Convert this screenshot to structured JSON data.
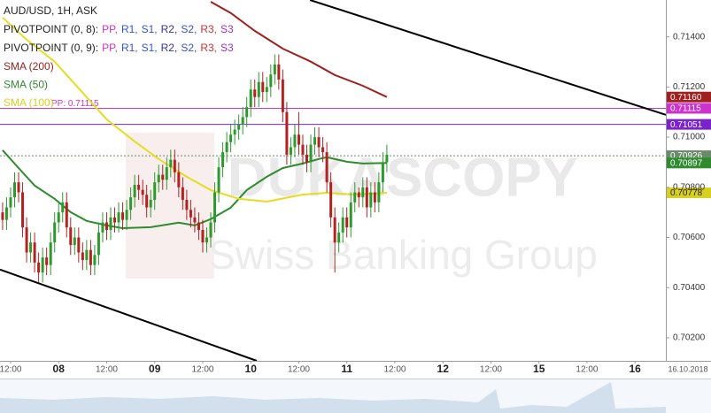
{
  "chart_data": {
    "type": "candlestick",
    "title": "AUD/USD, 1H, ASK",
    "pivot_legends": [
      {
        "label": "PIVOTPOINT (0, 8):",
        "items": [
          {
            "name": "PP,",
            "color": "#cc33cc"
          },
          {
            "name": "R1,",
            "color": "#3355cc"
          },
          {
            "name": "S1,",
            "color": "#3355cc"
          },
          {
            "name": "R2,",
            "color": "#333399"
          },
          {
            "name": "S2,",
            "color": "#3355cc"
          },
          {
            "name": "R3,",
            "color": "#cc3333"
          },
          {
            "name": "S3",
            "color": "#9933cc"
          }
        ]
      },
      {
        "label": "PIVOTPOINT (0, 9):",
        "items": [
          {
            "name": "PP,",
            "color": "#cc33cc"
          },
          {
            "name": "R1,",
            "color": "#3355cc"
          },
          {
            "name": "S1,",
            "color": "#3355cc"
          },
          {
            "name": "R2,",
            "color": "#333399"
          },
          {
            "name": "S2,",
            "color": "#3355cc"
          },
          {
            "name": "R3,",
            "color": "#cc3333"
          },
          {
            "name": "S3",
            "color": "#9933cc"
          }
        ]
      }
    ],
    "watermark": {
      "title": "DUKASCOPY",
      "subtitle": "Swiss Banking Group"
    },
    "xlim": [
      -2.65,
      163.7
    ],
    "ylim": [
      0.70108,
      0.71547
    ],
    "xticks": [
      {
        "value": 0,
        "label": "12:00"
      },
      {
        "value": 12,
        "label": "08"
      },
      {
        "value": 24,
        "label": "12:00"
      },
      {
        "value": 36,
        "label": "09"
      },
      {
        "value": 48,
        "label": "12:00"
      },
      {
        "value": 60,
        "label": "10"
      },
      {
        "value": 72,
        "label": "12:00"
      },
      {
        "value": 84,
        "label": "11"
      },
      {
        "value": 96,
        "label": "12:00"
      },
      {
        "value": 108,
        "label": "12"
      },
      {
        "value": 120,
        "label": "12:00"
      },
      {
        "value": 132,
        "label": "15"
      },
      {
        "value": 144,
        "label": "12:00"
      },
      {
        "value": 156,
        "label": "16"
      }
    ],
    "date_label": "16.10.2018",
    "yticks": [
      {
        "value": 0.702,
        "label": "0.70200"
      },
      {
        "value": 0.704,
        "label": "0.70400"
      },
      {
        "value": 0.706,
        "label": "0.70600"
      },
      {
        "value": 0.708,
        "label": "0.70800"
      },
      {
        "value": 0.71,
        "label": "0.71000"
      },
      {
        "value": 0.712,
        "label": "0.71200"
      },
      {
        "value": 0.714,
        "label": "0.71400"
      }
    ],
    "grid": false,
    "up_color": "#2e9a2e",
    "down_color": "#b22222",
    "x": [
      -2,
      -1,
      0,
      1,
      2,
      3,
      4,
      5,
      6,
      7,
      8,
      9,
      10,
      11,
      12,
      13,
      14,
      15,
      16,
      17,
      18,
      19,
      20,
      21,
      22,
      23,
      24,
      25,
      26,
      27,
      28,
      29,
      30,
      31,
      32,
      33,
      34,
      35,
      36,
      37,
      38,
      39,
      40,
      41,
      42,
      43,
      44,
      45,
      46,
      47,
      48,
      49,
      50,
      51,
      52,
      53,
      54,
      55,
      56,
      57,
      58,
      59,
      60,
      61,
      62,
      63,
      64,
      65,
      66,
      67,
      68,
      69,
      70,
      71,
      72,
      73,
      74,
      75,
      76,
      77,
      78,
      79,
      80,
      81,
      82,
      83,
      84,
      85,
      86,
      87,
      88,
      89,
      90,
      91,
      92,
      93,
      94
    ],
    "open": [
      0.707,
      0.7067,
      0.7072,
      0.7076,
      0.7082,
      0.7078,
      0.7064,
      0.7054,
      0.7058,
      0.705,
      0.7046,
      0.7052,
      0.7049,
      0.7058,
      0.7066,
      0.707,
      0.7074,
      0.7064,
      0.7057,
      0.706,
      0.7054,
      0.7051,
      0.7055,
      0.7049,
      0.7053,
      0.7062,
      0.7066,
      0.7063,
      0.7068,
      0.7066,
      0.707,
      0.7067,
      0.7071,
      0.7076,
      0.7081,
      0.7079,
      0.7077,
      0.7072,
      0.7075,
      0.7082,
      0.7085,
      0.7083,
      0.7088,
      0.7091,
      0.7086,
      0.708,
      0.7075,
      0.7071,
      0.7068,
      0.7066,
      0.7063,
      0.7058,
      0.706,
      0.7066,
      0.7078,
      0.7088,
      0.7094,
      0.7098,
      0.7101,
      0.7103,
      0.7105,
      0.7108,
      0.7112,
      0.7119,
      0.7116,
      0.7122,
      0.7118,
      0.712,
      0.7125,
      0.7129,
      0.7123,
      0.711,
      0.7093,
      0.7096,
      0.7101,
      0.7097,
      0.7093,
      0.709,
      0.7097,
      0.71,
      0.7096,
      0.7094,
      0.7082,
      0.7068,
      0.7058,
      0.7062,
      0.7068,
      0.7064,
      0.7074,
      0.7078,
      0.7076,
      0.708,
      0.7072,
      0.7078,
      0.7074,
      0.7082,
      0.709
    ],
    "high": [
      0.7074,
      0.7076,
      0.708,
      0.7086,
      0.7086,
      0.7082,
      0.7068,
      0.7062,
      0.7062,
      0.7054,
      0.7056,
      0.7056,
      0.7062,
      0.707,
      0.7074,
      0.7078,
      0.7078,
      0.7068,
      0.7064,
      0.7064,
      0.7058,
      0.7059,
      0.7059,
      0.7057,
      0.7066,
      0.707,
      0.707,
      0.7072,
      0.7072,
      0.7074,
      0.7074,
      0.7075,
      0.708,
      0.7085,
      0.7085,
      0.7083,
      0.7081,
      0.7079,
      0.7086,
      0.7089,
      0.7089,
      0.7092,
      0.7095,
      0.7095,
      0.709,
      0.7084,
      0.7079,
      0.7075,
      0.7072,
      0.707,
      0.7067,
      0.7064,
      0.707,
      0.7082,
      0.7092,
      0.7098,
      0.7102,
      0.7105,
      0.7107,
      0.7109,
      0.7112,
      0.7116,
      0.7123,
      0.7123,
      0.7126,
      0.7126,
      0.7124,
      0.7129,
      0.7133,
      0.7133,
      0.7127,
      0.7114,
      0.71,
      0.7105,
      0.711,
      0.7101,
      0.7097,
      0.7101,
      0.7104,
      0.7104,
      0.71,
      0.7098,
      0.7086,
      0.7072,
      0.7066,
      0.7072,
      0.7072,
      0.7078,
      0.7082,
      0.708,
      0.7084,
      0.7084,
      0.7082,
      0.7082,
      0.7086,
      0.7094,
      0.7097
    ],
    "low": [
      0.7063,
      0.7063,
      0.7068,
      0.7072,
      0.7074,
      0.706,
      0.705,
      0.705,
      0.7046,
      0.7042,
      0.7042,
      0.7045,
      0.7045,
      0.7054,
      0.7062,
      0.7066,
      0.706,
      0.7053,
      0.7053,
      0.705,
      0.7047,
      0.7047,
      0.7045,
      0.7045,
      0.7049,
      0.7058,
      0.7059,
      0.7059,
      0.7062,
      0.7062,
      0.7063,
      0.7063,
      0.7067,
      0.7072,
      0.7075,
      0.7073,
      0.7068,
      0.7068,
      0.7071,
      0.7078,
      0.7079,
      0.7079,
      0.7084,
      0.7082,
      0.7076,
      0.7071,
      0.7067,
      0.7064,
      0.7062,
      0.7059,
      0.7054,
      0.7054,
      0.7056,
      0.7062,
      0.7074,
      0.7084,
      0.709,
      0.7094,
      0.7097,
      0.7099,
      0.7101,
      0.7104,
      0.7108,
      0.7112,
      0.7112,
      0.7114,
      0.7114,
      0.7116,
      0.7121,
      0.7119,
      0.7106,
      0.7089,
      0.7089,
      0.7092,
      0.7093,
      0.7089,
      0.7086,
      0.7086,
      0.7093,
      0.7092,
      0.709,
      0.7078,
      0.7064,
      0.7046,
      0.7054,
      0.7058,
      0.706,
      0.706,
      0.707,
      0.7072,
      0.7072,
      0.7068,
      0.7068,
      0.707,
      0.707,
      0.7078,
      0.7086
    ],
    "close": [
      0.7067,
      0.7072,
      0.7076,
      0.7082,
      0.7078,
      0.7064,
      0.7054,
      0.7058,
      0.705,
      0.7046,
      0.7052,
      0.7049,
      0.7058,
      0.7066,
      0.707,
      0.7074,
      0.7064,
      0.7057,
      0.706,
      0.7054,
      0.7051,
      0.7055,
      0.7049,
      0.7053,
      0.7062,
      0.7066,
      0.7063,
      0.7068,
      0.7066,
      0.707,
      0.7067,
      0.7071,
      0.7076,
      0.7081,
      0.7079,
      0.7077,
      0.7072,
      0.7075,
      0.7082,
      0.7085,
      0.7083,
      0.7088,
      0.7091,
      0.7086,
      0.708,
      0.7075,
      0.7071,
      0.7068,
      0.7066,
      0.7063,
      0.7058,
      0.706,
      0.7066,
      0.7078,
      0.7088,
      0.7094,
      0.7098,
      0.7101,
      0.7103,
      0.7105,
      0.7108,
      0.7112,
      0.7119,
      0.7116,
      0.7122,
      0.7118,
      0.712,
      0.7125,
      0.7129,
      0.7123,
      0.711,
      0.7093,
      0.7096,
      0.7101,
      0.7097,
      0.7093,
      0.709,
      0.7097,
      0.71,
      0.7096,
      0.7094,
      0.7082,
      0.7068,
      0.7058,
      0.7062,
      0.7068,
      0.7064,
      0.7074,
      0.7078,
      0.7076,
      0.708,
      0.7072,
      0.7078,
      0.7074,
      0.7082,
      0.709,
      0.7093
    ],
    "series": [
      {
        "name": "SMA (200)",
        "color": "#a02020",
        "label_color": "#a02020",
        "x": [
          50,
          55,
          61,
          68,
          75,
          81,
          88,
          94
        ],
        "values": [
          0.7154,
          0.71495,
          0.71424,
          0.71353,
          0.71301,
          0.71248,
          0.71205,
          0.7116
        ],
        "last_label": "0.71160"
      },
      {
        "name": "SMA (50)",
        "color": "#2e8b2e",
        "label_color": "#2e8b2e",
        "x": [
          -2,
          2,
          6,
          11,
          15,
          19,
          24,
          28,
          35,
          42,
          46,
          50,
          55,
          59,
          64,
          68,
          73,
          77,
          79,
          84,
          88,
          94
        ],
        "values": [
          0.70948,
          0.70877,
          0.70807,
          0.70754,
          0.70701,
          0.70666,
          0.70648,
          0.70637,
          0.70641,
          0.70659,
          0.70648,
          0.70673,
          0.70719,
          0.70789,
          0.70842,
          0.70877,
          0.70895,
          0.70913,
          0.7092,
          0.70902,
          0.70895,
          0.70897
        ],
        "last_label": "0.70897"
      },
      {
        "name": "SMA (100)",
        "color": "#e6dc20",
        "label_color": "#d8d020",
        "x": [
          -2,
          4,
          11,
          17,
          24,
          31,
          37,
          44,
          50,
          57,
          64,
          73,
          79,
          86,
          94
        ],
        "values": [
          0.71477,
          0.71389,
          0.71301,
          0.71195,
          0.71071,
          0.70983,
          0.70913,
          0.70842,
          0.70789,
          0.70754,
          0.70743,
          0.70771,
          0.70778,
          0.70771,
          0.70778
        ],
        "last_label": "0.70778"
      }
    ],
    "levels": [
      {
        "value": 0.71115,
        "label": "0.71115",
        "color": "#cc33cc",
        "left_label": "PP: 0.71115",
        "style": "solid"
      },
      {
        "value": 0.71051,
        "label": "0.71051",
        "color": "#7a22cc",
        "style": "solid"
      },
      {
        "value": 0.70926,
        "label": "0.70926",
        "color": "#6a8a6a",
        "style": "dotted"
      }
    ],
    "trendlines": [
      {
        "x": [
          74.8,
          163.7
        ],
        "values": [
          0.71547,
          0.71089
        ]
      },
      {
        "x": [
          -2.65,
          61.5
        ],
        "values": [
          0.70472,
          0.70108
        ]
      }
    ]
  }
}
